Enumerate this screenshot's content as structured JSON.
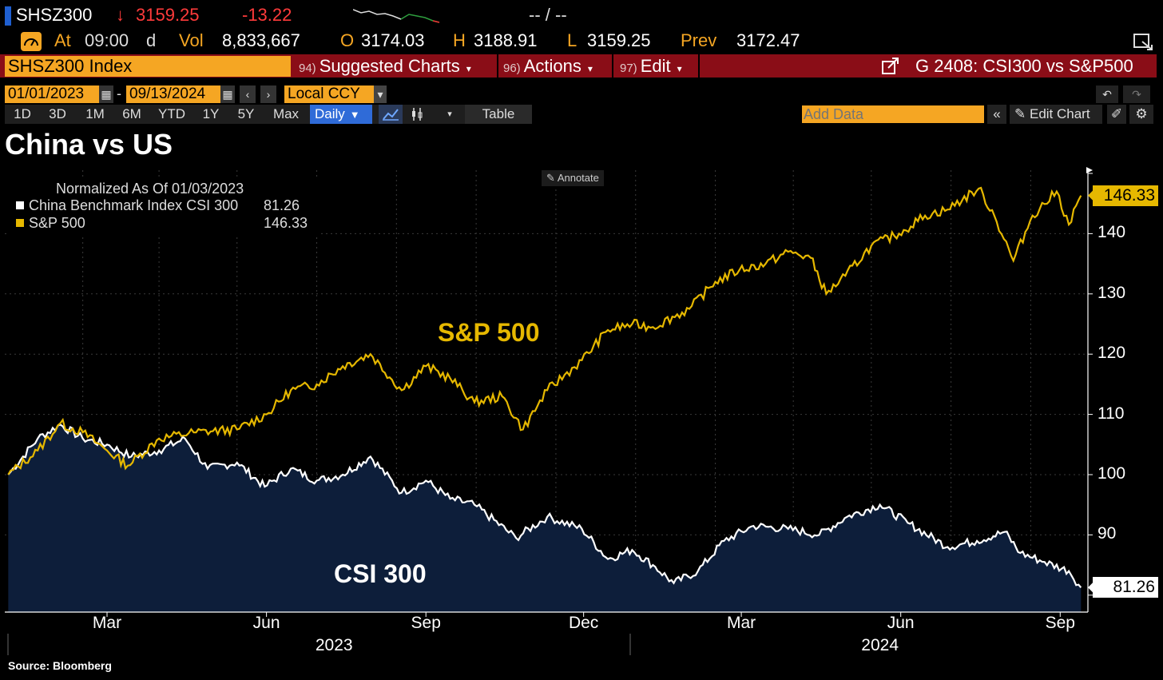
{
  "header": {
    "ticker": "SHSZ300",
    "last_price": "3159.25",
    "change": "-13.22",
    "range_placeholder": "-- / --",
    "at_label": "At",
    "at_time": "09:00",
    "at_suffix": "d",
    "vol_label": "Vol",
    "vol_value": "8,833,667",
    "open_label": "O",
    "open_value": "3174.03",
    "high_label": "H",
    "high_value": "3188.91",
    "low_label": "L",
    "low_value": "3159.25",
    "prev_label": "Prev",
    "prev_value": "3172.47"
  },
  "command_bar": {
    "security": "SHSZ300 Index",
    "suggested_num": "94)",
    "suggested_label": "Suggested Charts",
    "actions_num": "96)",
    "actions_label": "Actions",
    "edit_num": "97)",
    "edit_label": "Edit",
    "chart_name": "G 2408: CSI300 vs S&P500"
  },
  "date_range": {
    "start": "01/01/2023",
    "end": "09/13/2024",
    "currency": "Local CCY"
  },
  "toolbar": {
    "periods": [
      "1D",
      "3D",
      "1M",
      "6M",
      "YTD",
      "1Y",
      "5Y",
      "Max"
    ],
    "frequency": "Daily",
    "table_label": "Table",
    "add_data_placeholder": "Add Data",
    "edit_chart_label": "Edit Chart"
  },
  "chart_title": "China vs US",
  "annotate_label": "Annotate",
  "legend": {
    "header": "Normalized As Of 01/03/2023",
    "rows": [
      {
        "label": "China Benchmark Index CSI 300",
        "value": "81.26",
        "color": "#ffffff"
      },
      {
        "label": "S&P 500",
        "value": "146.33",
        "color": "#e6b800"
      }
    ]
  },
  "chart_data": {
    "type": "line",
    "title": "China vs US",
    "y_ticks": [
      "140",
      "130",
      "120",
      "110",
      "100",
      "90"
    ],
    "ylim": [
      79,
      153
    ],
    "x_ticks": [
      "Mar",
      "Jun",
      "Sep",
      "Dec",
      "Mar",
      "Jun",
      "Sep"
    ],
    "years": [
      "2023",
      "2024"
    ],
    "series": [
      {
        "name": "S&P 500",
        "color": "#e6b800",
        "label": "S&P 500",
        "last": "146.33",
        "points": [
          [
            "2023-01-03",
            100
          ],
          [
            "2023-01-20",
            104
          ],
          [
            "2023-02-02",
            108.5
          ],
          [
            "2023-02-15",
            107
          ],
          [
            "2023-03-01",
            104
          ],
          [
            "2023-03-13",
            101.5
          ],
          [
            "2023-03-31",
            106
          ],
          [
            "2023-04-20",
            107
          ],
          [
            "2023-05-15",
            107.5
          ],
          [
            "2023-06-01",
            110
          ],
          [
            "2023-06-15",
            114
          ],
          [
            "2023-06-30",
            115
          ],
          [
            "2023-07-15",
            118
          ],
          [
            "2023-07-31",
            120
          ],
          [
            "2023-08-18",
            114
          ],
          [
            "2023-09-01",
            118
          ],
          [
            "2023-09-15",
            116
          ],
          [
            "2023-09-29",
            112
          ],
          [
            "2023-10-15",
            113
          ],
          [
            "2023-10-27",
            107.5
          ],
          [
            "2023-11-10",
            114
          ],
          [
            "2023-11-30",
            119
          ],
          [
            "2023-12-15",
            124
          ],
          [
            "2023-12-29",
            125
          ],
          [
            "2024-01-10",
            124.5
          ],
          [
            "2024-01-31",
            127.5
          ],
          [
            "2024-02-15",
            132
          ],
          [
            "2024-02-29",
            134
          ],
          [
            "2024-03-15",
            135
          ],
          [
            "2024-03-28",
            137
          ],
          [
            "2024-04-10",
            136
          ],
          [
            "2024-04-19",
            130
          ],
          [
            "2024-04-30",
            133
          ],
          [
            "2024-05-15",
            138
          ],
          [
            "2024-05-31",
            140
          ],
          [
            "2024-06-15",
            143
          ],
          [
            "2024-06-28",
            144
          ],
          [
            "2024-07-16",
            147.5
          ],
          [
            "2024-07-25",
            143
          ],
          [
            "2024-08-05",
            135.5
          ],
          [
            "2024-08-16",
            143
          ],
          [
            "2024-08-30",
            147
          ],
          [
            "2024-09-06",
            141.5
          ],
          [
            "2024-09-13",
            146.33
          ]
        ]
      },
      {
        "name": "China Benchmark Index CSI 300",
        "color": "#ffffff",
        "label": "CSI 300",
        "last": "81.26",
        "points": [
          [
            "2023-01-03",
            100
          ],
          [
            "2023-01-20",
            106
          ],
          [
            "2023-02-02",
            108.3
          ],
          [
            "2023-02-15",
            106
          ],
          [
            "2023-03-01",
            105
          ],
          [
            "2023-03-15",
            103
          ],
          [
            "2023-03-31",
            104
          ],
          [
            "2023-04-15",
            106
          ],
          [
            "2023-04-28",
            101
          ],
          [
            "2023-05-15",
            102
          ],
          [
            "2023-05-31",
            98
          ],
          [
            "2023-06-15",
            101
          ],
          [
            "2023-06-30",
            99
          ],
          [
            "2023-07-15",
            100
          ],
          [
            "2023-07-31",
            103
          ],
          [
            "2023-08-18",
            97
          ],
          [
            "2023-09-01",
            99
          ],
          [
            "2023-09-15",
            96
          ],
          [
            "2023-09-29",
            95
          ],
          [
            "2023-10-23",
            89.5
          ],
          [
            "2023-11-10",
            93
          ],
          [
            "2023-11-30",
            91
          ],
          [
            "2023-12-15",
            86
          ],
          [
            "2023-12-29",
            87.5
          ],
          [
            "2024-01-10",
            85
          ],
          [
            "2024-01-22",
            82
          ],
          [
            "2024-02-05",
            84
          ],
          [
            "2024-02-20",
            89
          ],
          [
            "2024-03-08",
            91.5
          ],
          [
            "2024-03-28",
            91
          ],
          [
            "2024-04-15",
            90
          ],
          [
            "2024-05-01",
            93
          ],
          [
            "2024-05-20",
            95
          ],
          [
            "2024-06-05",
            92
          ],
          [
            "2024-06-28",
            88
          ],
          [
            "2024-07-15",
            89
          ],
          [
            "2024-07-31",
            90.5
          ],
          [
            "2024-08-09",
            87
          ],
          [
            "2024-08-23",
            85.5
          ],
          [
            "2024-09-06",
            84
          ],
          [
            "2024-09-13",
            81.26
          ]
        ]
      }
    ],
    "grid": true,
    "legend_position": "top-left"
  },
  "source": "Source: Bloomberg"
}
